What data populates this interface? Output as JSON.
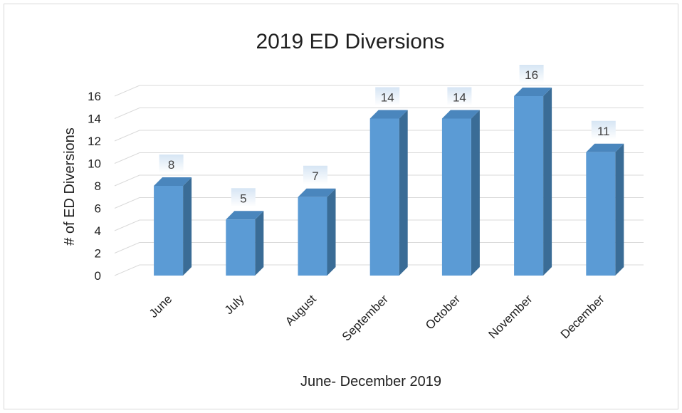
{
  "chart_data": {
    "type": "bar",
    "title": "2019 ED Diversions",
    "xlabel": "June- December 2019",
    "ylabel": "# of ED Diversions",
    "categories": [
      "June",
      "July",
      "August",
      "September",
      "October",
      "November",
      "December"
    ],
    "values": [
      8,
      5,
      7,
      14,
      14,
      16,
      11
    ],
    "data_labels": [
      "8",
      "5",
      "7",
      "14",
      "14",
      "16",
      "11"
    ],
    "y_ticks": [
      "0",
      "2",
      "4",
      "6",
      "8",
      "10",
      "12",
      "14",
      "16"
    ],
    "ylim": [
      0,
      16
    ],
    "grid": true,
    "legend": "none",
    "style": "3d-column",
    "colors": {
      "bar_front": "#5b9bd5",
      "bar_side": "#3a6c96",
      "bar_top": "#4a86bd",
      "label_bg_top": "#dbe8f5",
      "label_bg_bottom": "#ffffff",
      "gridline": "#d9d9d9"
    }
  }
}
